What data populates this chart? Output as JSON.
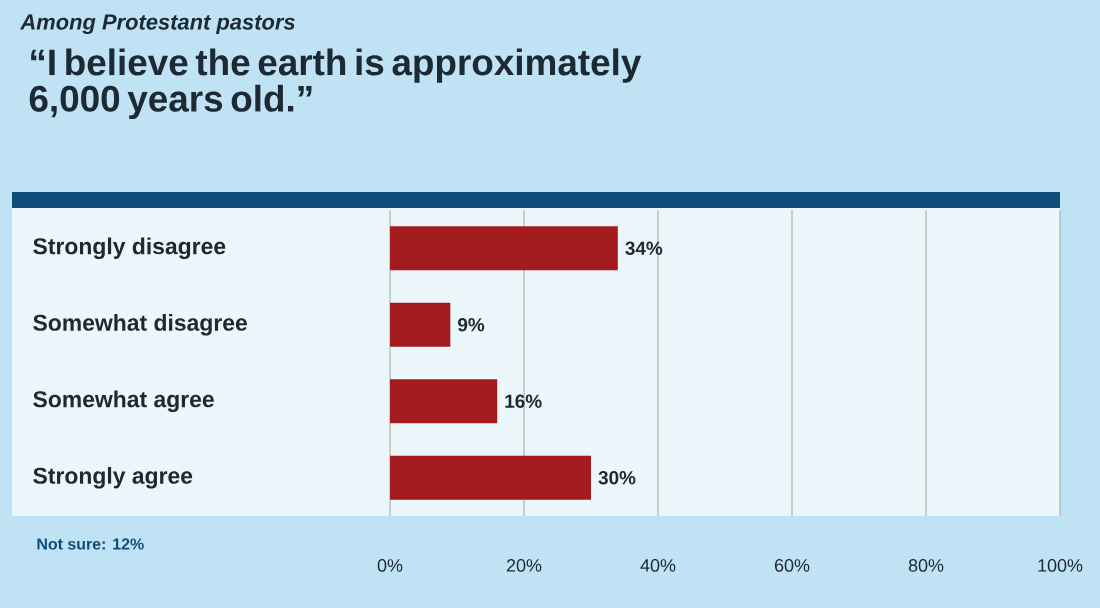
{
  "chart_data": {
    "type": "bar",
    "orientation": "horizontal",
    "subtitle": "Among Protestant pastors",
    "title": "“I believe the earth is approximately 6,000 years old.”",
    "categories": [
      "Strongly disagree",
      "Somewhat disagree",
      "Somewhat agree",
      "Strongly agree"
    ],
    "values": [
      34,
      9,
      16,
      30
    ],
    "value_labels": [
      "34%",
      "9%",
      "16%",
      "30%"
    ],
    "color": "#a31b1f",
    "xlim": [
      0,
      100
    ],
    "xticks": [
      {
        "value": 0,
        "label": "0%"
      },
      {
        "value": 20,
        "label": "20%"
      },
      {
        "value": 40,
        "label": "40%"
      },
      {
        "value": 60,
        "label": "60%"
      },
      {
        "value": 80,
        "label": "80%"
      },
      {
        "value": 100,
        "label": "100%"
      }
    ],
    "grid": "x",
    "annotations": [
      "Not sure: 12%"
    ]
  }
}
